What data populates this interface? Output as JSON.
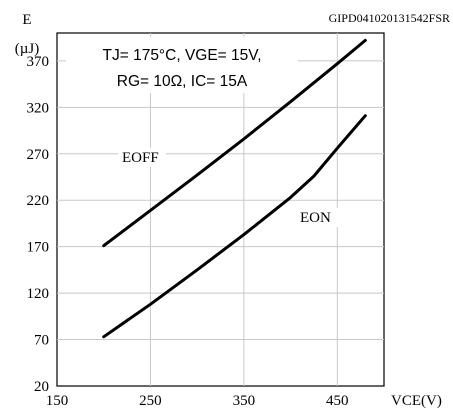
{
  "chart_data": {
    "type": "line",
    "title": "",
    "header_code": "GIPD041020131542FSR",
    "ylabel_symbol": "E",
    "ylabel_unit": "(µJ)",
    "xlabel": "VCE(V)",
    "xlim": [
      150,
      500
    ],
    "ylim": [
      20,
      400
    ],
    "x_ticks": [
      150,
      250,
      350,
      450
    ],
    "y_ticks": [
      20,
      70,
      120,
      170,
      220,
      270,
      320,
      370
    ],
    "grid": true,
    "conditions": [
      "TJ= 175°C, VGE= 15V,",
      "RG= 10Ω, IC= 15A"
    ],
    "series": [
      {
        "name": "EOFF",
        "x": [
          200,
          250,
          300,
          350,
          400,
          450,
          480
        ],
        "y": [
          171,
          209,
          247,
          286,
          326,
          367,
          392
        ]
      },
      {
        "name": "EON",
        "x": [
          200,
          250,
          300,
          350,
          400,
          425,
          450,
          480
        ],
        "y": [
          73,
          108,
          145,
          183,
          223,
          246,
          276,
          311
        ]
      }
    ]
  }
}
